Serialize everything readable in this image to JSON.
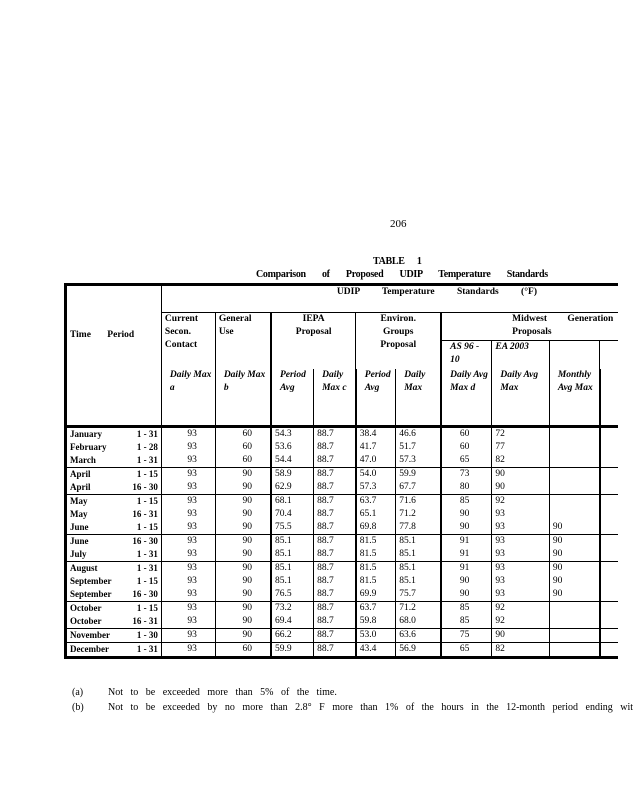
{
  "page_number": "206",
  "table": {
    "label": "TABLE 1",
    "title": "Comparison of Proposed UDIP Temperature Standards",
    "span_header": "UDIP Temperature Standards (°F)",
    "time_header": "Time Period",
    "col_groups": {
      "current": "Current Secon. Contact",
      "general": "General Use",
      "iepa": "IEPA Proposal",
      "environ": "Environ. Groups Proposal",
      "midwest": "Midwest Generation Proposals",
      "as": "AS 96 - 10",
      "ea": "EA 2003"
    },
    "sub_headers": [
      "Daily Max a",
      "Daily Max b",
      "Period Avg",
      "Daily Max c",
      "Period Avg",
      "Daily Max",
      "Daily Avg Max d",
      "Daily Avg Max",
      "Monthly Avg Max"
    ],
    "groups": [
      [
        [
          "January",
          "1 - 31",
          "93",
          "60",
          "54.3",
          "88.7",
          "38.4",
          "46.6",
          "60",
          "72",
          ""
        ],
        [
          "February",
          "1 - 28",
          "93",
          "60",
          "53.6",
          "88.7",
          "41.7",
          "51.7",
          "60",
          "77",
          ""
        ],
        [
          "March",
          "1 - 31",
          "93",
          "60",
          "54.4",
          "88.7",
          "47.0",
          "57.3",
          "65",
          "82",
          ""
        ]
      ],
      [
        [
          "April",
          "1 - 15",
          "93",
          "90",
          "58.9",
          "88.7",
          "54.0",
          "59.9",
          "73",
          "90",
          ""
        ],
        [
          "April",
          "16 - 30",
          "93",
          "90",
          "62.9",
          "88.7",
          "57.3",
          "67.7",
          "80",
          "90",
          ""
        ]
      ],
      [
        [
          "May",
          "1 - 15",
          "93",
          "90",
          "68.1",
          "88.7",
          "63.7",
          "71.6",
          "85",
          "92",
          ""
        ],
        [
          "May",
          "16 - 31",
          "93",
          "90",
          "70.4",
          "88.7",
          "65.1",
          "71.2",
          "90",
          "93",
          ""
        ],
        [
          "June",
          "1 - 15",
          "93",
          "90",
          "75.5",
          "88.7",
          "69.8",
          "77.8",
          "90",
          "93",
          "90"
        ]
      ],
      [
        [
          "June",
          "16 - 30",
          "93",
          "90",
          "85.1",
          "88.7",
          "81.5",
          "85.1",
          "91",
          "93",
          "90"
        ],
        [
          "July",
          "1 - 31",
          "93",
          "90",
          "85.1",
          "88.7",
          "81.5",
          "85.1",
          "91",
          "93",
          "90"
        ]
      ],
      [
        [
          "August",
          "1 - 31",
          "93",
          "90",
          "85.1",
          "88.7",
          "81.5",
          "85.1",
          "91",
          "93",
          "90"
        ],
        [
          "September",
          "1 - 15",
          "93",
          "90",
          "85.1",
          "88.7",
          "81.5",
          "85.1",
          "90",
          "93",
          "90"
        ],
        [
          "September",
          "16 - 30",
          "93",
          "90",
          "76.5",
          "88.7",
          "69.9",
          "75.7",
          "90",
          "93",
          "90"
        ]
      ],
      [
        [
          "October",
          "1 - 15",
          "93",
          "90",
          "73.2",
          "88.7",
          "63.7",
          "71.2",
          "85",
          "92",
          ""
        ],
        [
          "October",
          "16 - 31",
          "93",
          "90",
          "69.4",
          "88.7",
          "59.8",
          "68.0",
          "85",
          "92",
          ""
        ]
      ],
      [
        [
          "November",
          "1 - 30",
          "93",
          "90",
          "66.2",
          "88.7",
          "53.0",
          "63.6",
          "75",
          "90",
          ""
        ]
      ],
      [
        [
          "December",
          "1 - 31",
          "93",
          "60",
          "59.9",
          "88.7",
          "43.4",
          "56.9",
          "65",
          "82",
          ""
        ]
      ]
    ]
  },
  "footnotes": [
    {
      "mark": "(a)",
      "text": "Not to be exceeded more than 5% of the time."
    },
    {
      "mark": "(b)",
      "text": "Not to be exceeded by no more than 2.8° F more than 1% of the hours in the 12-month period ending wit"
    }
  ]
}
